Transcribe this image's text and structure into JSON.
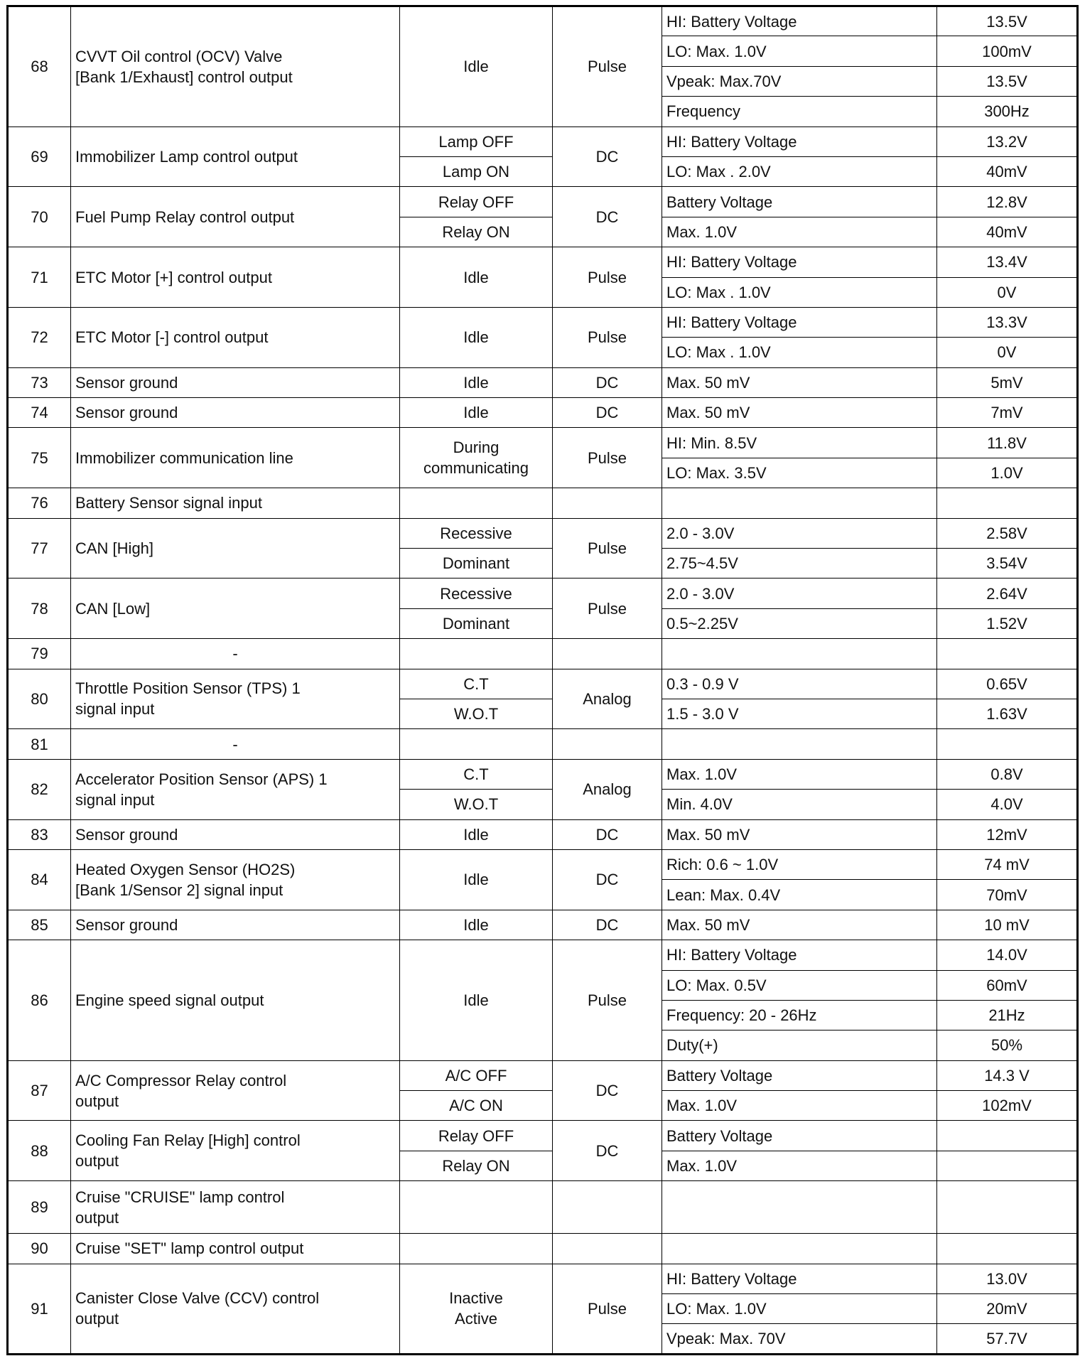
{
  "rows": [
    {
      "pin": "68",
      "desc": "CVVT Oil control (OCV) Valve\n[Bank 1/Exhaust] control output",
      "conditions": [
        "Idle"
      ],
      "type": "Pulse",
      "tests": [
        {
          "spec": "HI: Battery Voltage",
          "value": "13.5V"
        },
        {
          "spec": "LO: Max. 1.0V",
          "value": "100mV"
        },
        {
          "spec": "Vpeak: Max.70V",
          "value": "13.5V"
        },
        {
          "spec": "Frequency",
          "value": "300Hz"
        }
      ]
    },
    {
      "pin": "69",
      "desc": "Immobilizer Lamp control output",
      "conditions": [
        "Lamp OFF",
        "Lamp ON"
      ],
      "type": "DC",
      "tests": [
        {
          "spec": "HI: Battery Voltage",
          "value": "13.2V"
        },
        {
          "spec": "LO: Max . 2.0V",
          "value": "40mV"
        }
      ]
    },
    {
      "pin": "70",
      "desc": "Fuel Pump Relay control output",
      "conditions": [
        "Relay OFF",
        "Relay ON"
      ],
      "type": "DC",
      "tests": [
        {
          "spec": "Battery Voltage",
          "value": "12.8V"
        },
        {
          "spec": "Max. 1.0V",
          "value": "40mV"
        }
      ]
    },
    {
      "pin": "71",
      "desc": "ETC Motor [+] control output",
      "conditions": [
        "Idle"
      ],
      "type": "Pulse",
      "tests": [
        {
          "spec": "HI: Battery Voltage",
          "value": "13.4V"
        },
        {
          "spec": "LO: Max . 1.0V",
          "value": "0V"
        }
      ]
    },
    {
      "pin": "72",
      "desc": "ETC Motor [-] control output",
      "conditions": [
        "Idle"
      ],
      "type": "Pulse",
      "tests": [
        {
          "spec": "HI: Battery Voltage",
          "value": "13.3V"
        },
        {
          "spec": "LO: Max . 1.0V",
          "value": "0V"
        }
      ]
    },
    {
      "pin": "73",
      "desc": "Sensor ground",
      "conditions": [
        "Idle"
      ],
      "type": "DC",
      "tests": [
        {
          "spec": "Max. 50 mV",
          "value": "5mV"
        }
      ]
    },
    {
      "pin": "74",
      "desc": "Sensor ground",
      "conditions": [
        "Idle"
      ],
      "type": "DC",
      "tests": [
        {
          "spec": "Max. 50 mV",
          "value": "7mV"
        }
      ]
    },
    {
      "pin": "75",
      "desc": "Immobilizer communication line",
      "conditions": [
        "During\ncommunicating"
      ],
      "type": "Pulse",
      "tests": [
        {
          "spec": "HI: Min. 8.5V",
          "value": "11.8V"
        },
        {
          "spec": "LO: Max. 3.5V",
          "value": "1.0V"
        }
      ]
    },
    {
      "pin": "76",
      "desc": "Battery Sensor signal input",
      "conditions": [
        ""
      ],
      "type": "",
      "tests": [
        {
          "spec": "",
          "value": ""
        }
      ]
    },
    {
      "pin": "77",
      "desc": "CAN [High]",
      "conditions": [
        "Recessive",
        "Dominant"
      ],
      "type": "Pulse",
      "tests": [
        {
          "spec": "2.0 - 3.0V",
          "value": "2.58V"
        },
        {
          "spec": "2.75~4.5V",
          "value": "3.54V"
        }
      ]
    },
    {
      "pin": "78",
      "desc": "CAN [Low]",
      "conditions": [
        "Recessive",
        "Dominant"
      ],
      "type": "Pulse",
      "tests": [
        {
          "spec": "2.0 - 3.0V",
          "value": "2.64V"
        },
        {
          "spec": "0.5~2.25V",
          "value": "1.52V"
        }
      ]
    },
    {
      "pin": "79",
      "desc": "-",
      "desc_center": true,
      "conditions": [
        ""
      ],
      "type": "",
      "tests": [
        {
          "spec": "",
          "value": ""
        }
      ]
    },
    {
      "pin": "80",
      "desc": "Throttle Position Sensor (TPS) 1\nsignal input",
      "conditions": [
        "C.T",
        "W.O.T"
      ],
      "type": "Analog",
      "tests": [
        {
          "spec": "0.3 - 0.9 V",
          "value": "0.65V"
        },
        {
          "spec": "1.5 - 3.0 V",
          "value": "1.63V"
        }
      ]
    },
    {
      "pin": "81",
      "desc": "-",
      "desc_center": true,
      "conditions": [
        ""
      ],
      "type": "",
      "tests": [
        {
          "spec": "",
          "value": ""
        }
      ]
    },
    {
      "pin": "82",
      "desc": "Accelerator Position Sensor (APS) 1\nsignal input",
      "conditions": [
        "C.T",
        "W.O.T"
      ],
      "type": "Analog",
      "tests": [
        {
          "spec": "Max. 1.0V",
          "value": "0.8V"
        },
        {
          "spec": "Min. 4.0V",
          "value": "4.0V"
        }
      ]
    },
    {
      "pin": "83",
      "desc": "Sensor ground",
      "conditions": [
        "Idle"
      ],
      "type": "DC",
      "tests": [
        {
          "spec": "Max. 50 mV",
          "value": "12mV"
        }
      ]
    },
    {
      "pin": "84",
      "desc": "Heated Oxygen Sensor (HO2S)\n[Bank 1/Sensor 2] signal input",
      "conditions": [
        "Idle"
      ],
      "type": "DC",
      "tests": [
        {
          "spec": "Rich: 0.6 ~ 1.0V",
          "value": "74 mV"
        },
        {
          "spec": "Lean: Max. 0.4V",
          "value": "70mV"
        }
      ]
    },
    {
      "pin": "85",
      "desc": "Sensor ground",
      "conditions": [
        "Idle"
      ],
      "type": "DC",
      "tests": [
        {
          "spec": "Max. 50 mV",
          "value": "10 mV"
        }
      ]
    },
    {
      "pin": "86",
      "desc": "Engine speed signal output",
      "conditions": [
        "Idle"
      ],
      "type": "Pulse",
      "tests": [
        {
          "spec": "HI: Battery Voltage",
          "value": "14.0V"
        },
        {
          "spec": "LO: Max. 0.5V",
          "value": "60mV"
        },
        {
          "spec": "Frequency: 20 - 26Hz",
          "value": "21Hz"
        },
        {
          "spec": "Duty(+)",
          "value": "50%"
        }
      ]
    },
    {
      "pin": "87",
      "desc": "A/C Compressor Relay control\noutput",
      "conditions": [
        "A/C OFF",
        "A/C ON"
      ],
      "type": "DC",
      "tests": [
        {
          "spec": "Battery Voltage",
          "value": "14.3 V"
        },
        {
          "spec": "Max. 1.0V",
          "value": "102mV"
        }
      ]
    },
    {
      "pin": "88",
      "desc": "Cooling Fan Relay [High] control\noutput",
      "conditions": [
        "Relay OFF",
        "Relay ON"
      ],
      "type": "DC",
      "tests": [
        {
          "spec": "Battery Voltage",
          "value": ""
        },
        {
          "spec": "Max. 1.0V",
          "value": ""
        }
      ]
    },
    {
      "pin": "89",
      "desc": "Cruise \"CRUISE\" lamp control\noutput",
      "conditions": [
        ""
      ],
      "type": "",
      "tests": [
        {
          "spec": "",
          "value": ""
        }
      ]
    },
    {
      "pin": "90",
      "desc": "Cruise \"SET\" lamp control output",
      "conditions": [
        ""
      ],
      "type": "",
      "tests": [
        {
          "spec": "",
          "value": ""
        }
      ]
    },
    {
      "pin": "91",
      "desc": "Canister Close Valve (CCV) control\noutput",
      "conditions": [
        "Inactive\nActive"
      ],
      "type": "Pulse",
      "tests": [
        {
          "spec": "HI: Battery Voltage",
          "value": "13.0V"
        },
        {
          "spec": "LO: Max. 1.0V",
          "value": "20mV"
        },
        {
          "spec": "Vpeak: Max. 70V",
          "value": "57.7V"
        }
      ]
    }
  ]
}
